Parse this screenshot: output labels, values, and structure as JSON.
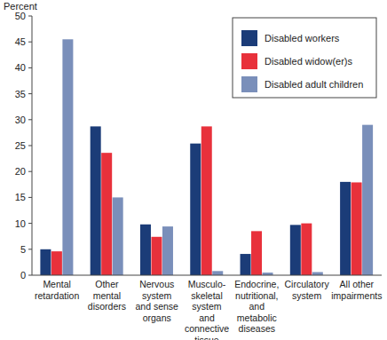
{
  "chart_data": {
    "type": "bar",
    "y_label": "Percent",
    "categories": [
      "Mental\nretardation",
      "Other\nmental\ndisorders",
      "Nervous\nsystem\nand sense\norgans",
      "Musculo-\nskeletal\nsystem\nand\nconnective\ntissue",
      "Endocrine,\nnutritional,\nand\nmetabolic\ndiseases",
      "Circulatory\nsystem",
      "All other impairments"
    ],
    "series": [
      {
        "name": "Disabled workers",
        "color": "#1b3c78",
        "values": [
          5.0,
          28.7,
          9.8,
          25.4,
          4.1,
          9.7,
          18.0
        ]
      },
      {
        "name": "Disabled widow(er)s",
        "color": "#e8313b",
        "values": [
          4.6,
          23.6,
          7.4,
          28.7,
          8.5,
          10.0,
          17.9
        ]
      },
      {
        "name": "Disabled adult children",
        "color": "#7a8fba",
        "values": [
          45.5,
          15.0,
          9.4,
          0.8,
          0.5,
          0.6,
          29.0
        ]
      }
    ],
    "ylim": [
      0,
      50
    ],
    "yticks": [
      0,
      5,
      10,
      15,
      20,
      25,
      30,
      35,
      40,
      45,
      50
    ],
    "grid": false,
    "legend": "top-right"
  }
}
